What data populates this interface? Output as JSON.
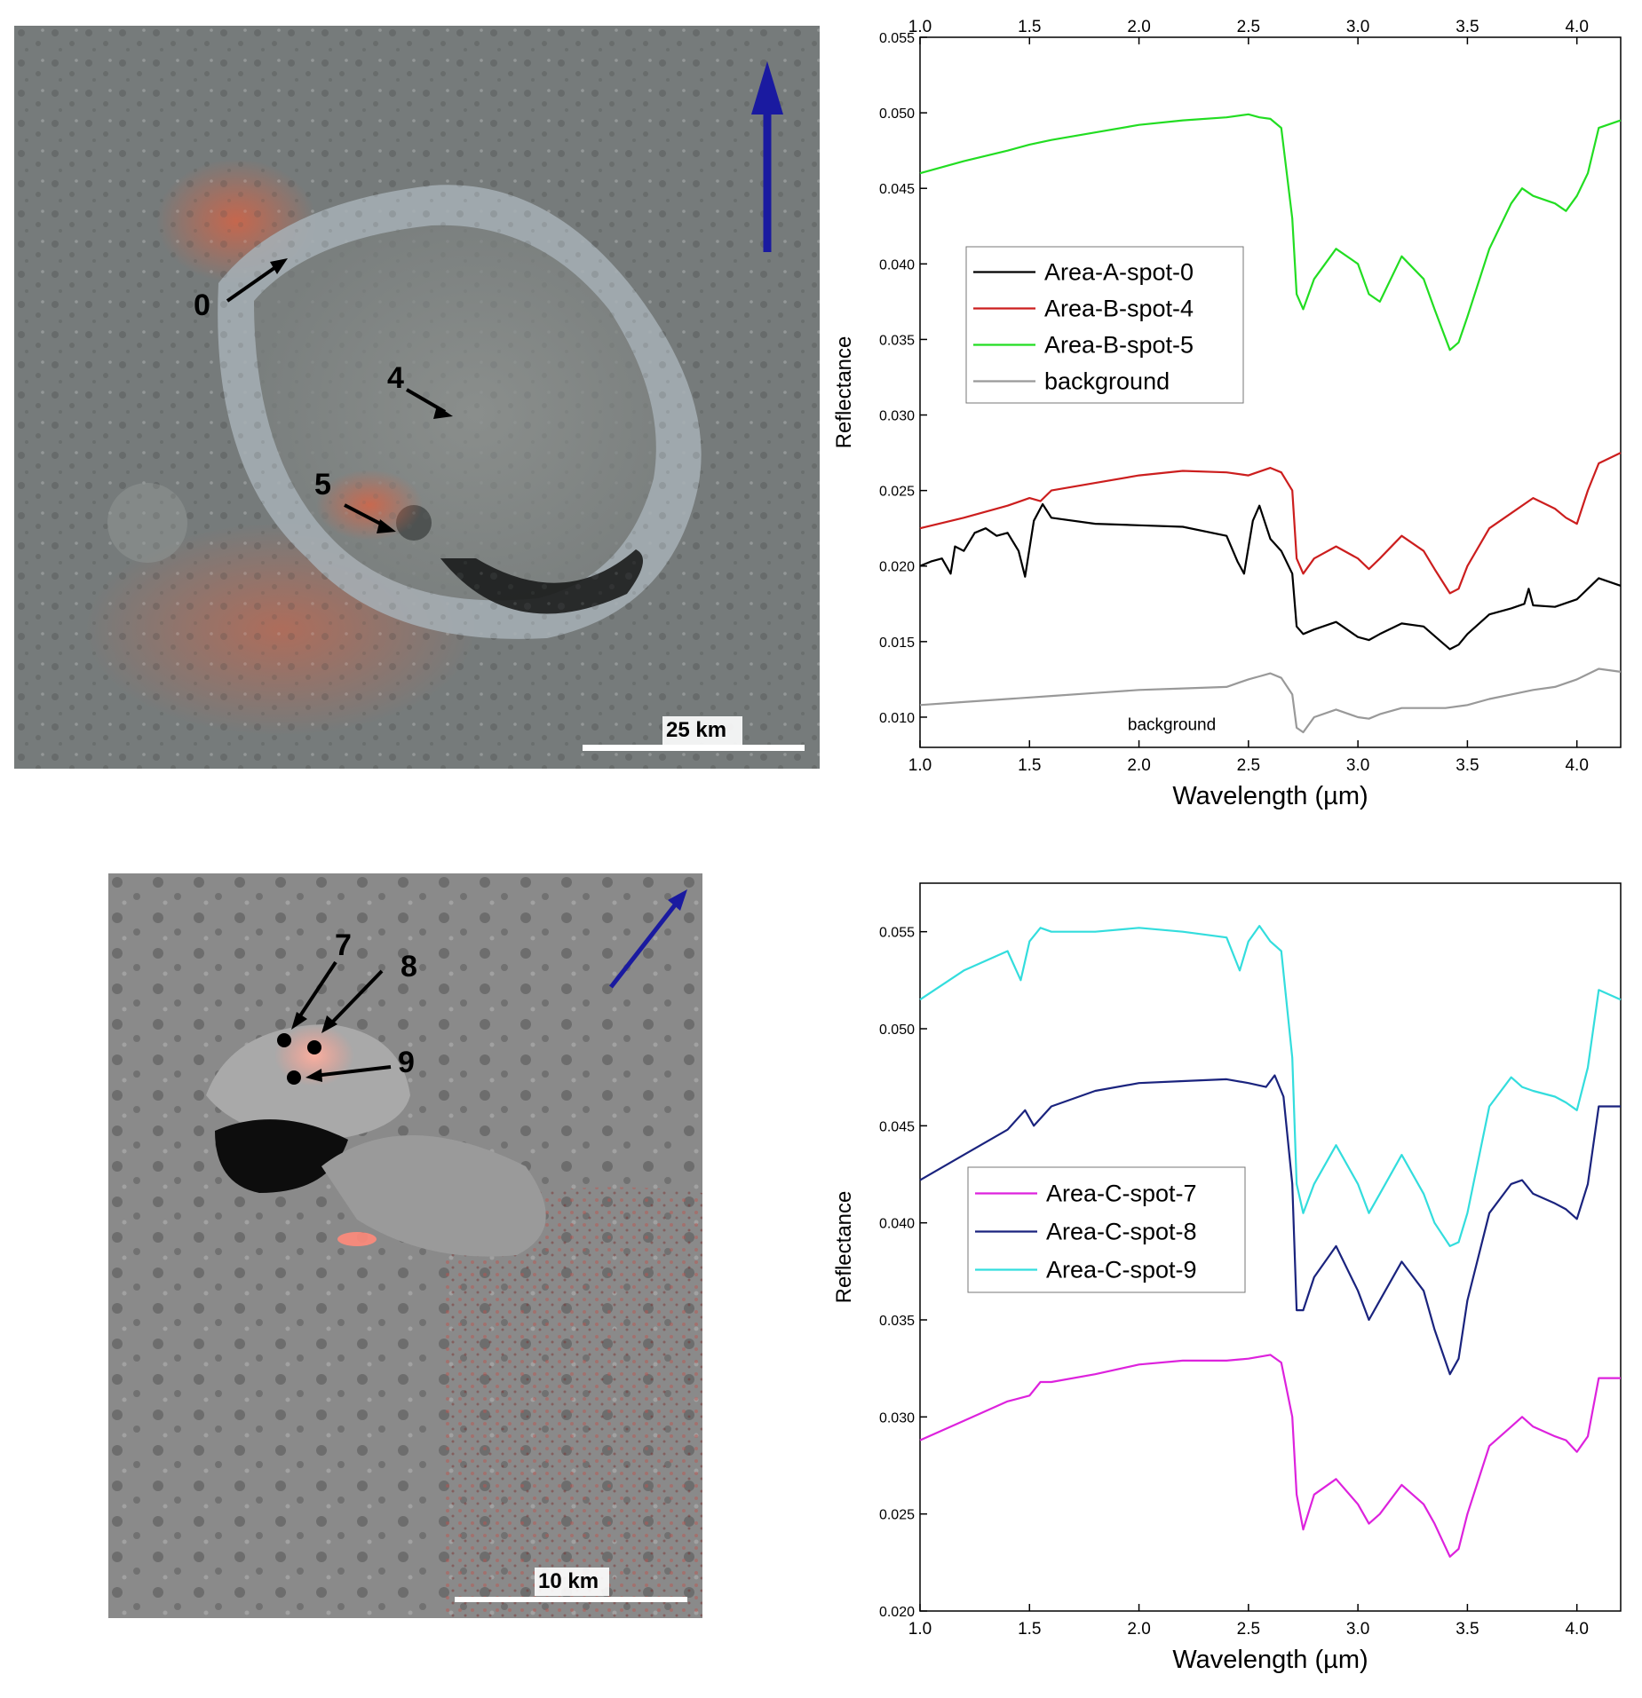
{
  "image_a": {
    "scale_label": "25 km",
    "spot_labels": [
      "0",
      "4",
      "5"
    ]
  },
  "image_b": {
    "scale_label": "10 km",
    "spot_labels": [
      "7",
      "8",
      "9"
    ]
  },
  "colors": {
    "area_a_spot_0": "#000000",
    "area_b_spot_4": "#cc1e1e",
    "area_b_spot_5": "#22dd22",
    "background": "#999999",
    "area_c_spot_7": "#dd22dd",
    "area_c_spot_8": "#1a237e",
    "area_c_spot_9": "#33dddd",
    "north_arrow": "#1a1aa0"
  },
  "chart_data": [
    {
      "type": "line",
      "xlabel": "Wavelength (µm)",
      "ylabel": "Reflectance",
      "xlim": [
        1.0,
        4.2
      ],
      "ylim": [
        0.008,
        0.055
      ],
      "xticks": [
        "1.0",
        "1.5",
        "2.0",
        "2.5",
        "3.0",
        "3.5",
        "4.0"
      ],
      "xticks_top": [
        "1.0",
        "1.5",
        "2.0",
        "2.5",
        "3.0",
        "3.5",
        "4.0"
      ],
      "yticks": [
        "0.010",
        "0.015",
        "0.020",
        "0.025",
        "0.030",
        "0.035",
        "0.040",
        "0.045",
        "0.050",
        "0.055"
      ],
      "legend_position": "middle-left",
      "annotation": "background",
      "series": [
        {
          "name": "Area-A-spot-0",
          "x": [
            1.0,
            1.05,
            1.1,
            1.14,
            1.16,
            1.2,
            1.25,
            1.3,
            1.35,
            1.4,
            1.45,
            1.48,
            1.52,
            1.56,
            1.6,
            1.8,
            2.0,
            2.2,
            2.4,
            2.45,
            2.48,
            2.52,
            2.55,
            2.6,
            2.65,
            2.7,
            2.72,
            2.75,
            2.8,
            2.9,
            3.0,
            3.05,
            3.1,
            3.2,
            3.3,
            3.38,
            3.42,
            3.46,
            3.5,
            3.6,
            3.7,
            3.76,
            3.78,
            3.8,
            3.9,
            4.0,
            4.05,
            4.1,
            4.2
          ],
          "y": [
            0.02,
            0.0203,
            0.0205,
            0.0195,
            0.0213,
            0.021,
            0.0222,
            0.0225,
            0.022,
            0.0222,
            0.021,
            0.0193,
            0.023,
            0.0241,
            0.0232,
            0.0228,
            0.0227,
            0.0226,
            0.022,
            0.0203,
            0.0195,
            0.023,
            0.024,
            0.0218,
            0.021,
            0.0195,
            0.016,
            0.0155,
            0.0158,
            0.0163,
            0.0153,
            0.0151,
            0.0155,
            0.0162,
            0.016,
            0.015,
            0.0145,
            0.0148,
            0.0155,
            0.0168,
            0.0172,
            0.0175,
            0.0185,
            0.0174,
            0.0173,
            0.0178,
            0.0185,
            0.0192,
            0.0187
          ]
        },
        {
          "name": "Area-B-spot-4",
          "x": [
            1.0,
            1.2,
            1.4,
            1.5,
            1.55,
            1.6,
            1.8,
            2.0,
            2.2,
            2.4,
            2.5,
            2.6,
            2.65,
            2.7,
            2.72,
            2.75,
            2.8,
            2.9,
            3.0,
            3.05,
            3.1,
            3.2,
            3.3,
            3.35,
            3.42,
            3.46,
            3.5,
            3.6,
            3.7,
            3.8,
            3.9,
            3.95,
            4.0,
            4.05,
            4.1,
            4.2
          ],
          "y": [
            0.0225,
            0.0232,
            0.024,
            0.0245,
            0.0243,
            0.025,
            0.0255,
            0.026,
            0.0263,
            0.0262,
            0.026,
            0.0265,
            0.0262,
            0.025,
            0.0205,
            0.0195,
            0.0205,
            0.0213,
            0.0205,
            0.0198,
            0.0205,
            0.022,
            0.021,
            0.0198,
            0.0182,
            0.0185,
            0.02,
            0.0225,
            0.0235,
            0.0245,
            0.0238,
            0.0232,
            0.0228,
            0.025,
            0.0268,
            0.0275
          ]
        },
        {
          "name": "Area-B-spot-5",
          "x": [
            1.0,
            1.2,
            1.4,
            1.5,
            1.6,
            1.8,
            2.0,
            2.2,
            2.4,
            2.5,
            2.55,
            2.6,
            2.65,
            2.7,
            2.72,
            2.75,
            2.8,
            2.9,
            3.0,
            3.05,
            3.1,
            3.2,
            3.3,
            3.35,
            3.42,
            3.46,
            3.5,
            3.6,
            3.7,
            3.75,
            3.8,
            3.9,
            3.95,
            4.0,
            4.05,
            4.1,
            4.2
          ],
          "y": [
            0.046,
            0.0468,
            0.0475,
            0.0479,
            0.0482,
            0.0487,
            0.0492,
            0.0495,
            0.0497,
            0.0499,
            0.0497,
            0.0496,
            0.049,
            0.043,
            0.038,
            0.037,
            0.039,
            0.041,
            0.04,
            0.038,
            0.0375,
            0.0405,
            0.039,
            0.037,
            0.0343,
            0.0348,
            0.0365,
            0.041,
            0.044,
            0.045,
            0.0445,
            0.044,
            0.0435,
            0.0445,
            0.046,
            0.049,
            0.0495
          ]
        },
        {
          "name": "background",
          "x": [
            1.0,
            1.2,
            1.4,
            1.5,
            1.6,
            1.8,
            2.0,
            2.2,
            2.4,
            2.5,
            2.55,
            2.6,
            2.65,
            2.7,
            2.72,
            2.75,
            2.8,
            2.9,
            3.0,
            3.05,
            3.1,
            3.2,
            3.3,
            3.4,
            3.5,
            3.6,
            3.7,
            3.8,
            3.9,
            4.0,
            4.1,
            4.2
          ],
          "y": [
            0.0108,
            0.011,
            0.0112,
            0.0113,
            0.0114,
            0.0116,
            0.0118,
            0.0119,
            0.012,
            0.0125,
            0.0127,
            0.0129,
            0.0126,
            0.0115,
            0.0093,
            0.009,
            0.01,
            0.0105,
            0.01,
            0.0099,
            0.0102,
            0.0106,
            0.0106,
            0.0106,
            0.0108,
            0.0112,
            0.0115,
            0.0118,
            0.012,
            0.0125,
            0.0132,
            0.013
          ]
        }
      ]
    },
    {
      "type": "line",
      "xlabel": "Wavelength (µm)",
      "ylabel": "Reflectance",
      "xlim": [
        1.0,
        4.2
      ],
      "ylim": [
        0.02,
        0.0575
      ],
      "xticks": [
        "1.0",
        "1.5",
        "2.0",
        "2.5",
        "3.0",
        "3.5",
        "4.0"
      ],
      "yticks": [
        "0.020",
        "0.025",
        "0.030",
        "0.035",
        "0.040",
        "0.045",
        "0.050",
        "0.055"
      ],
      "legend_position": "middle-left",
      "series": [
        {
          "name": "Area-C-spot-7",
          "x": [
            1.0,
            1.2,
            1.4,
            1.5,
            1.55,
            1.6,
            1.8,
            2.0,
            2.2,
            2.4,
            2.5,
            2.6,
            2.65,
            2.7,
            2.72,
            2.75,
            2.8,
            2.9,
            3.0,
            3.05,
            3.1,
            3.2,
            3.3,
            3.35,
            3.42,
            3.46,
            3.5,
            3.6,
            3.7,
            3.75,
            3.8,
            3.9,
            3.95,
            4.0,
            4.05,
            4.1,
            4.2
          ],
          "y": [
            0.0288,
            0.0298,
            0.0308,
            0.0311,
            0.0318,
            0.0318,
            0.0322,
            0.0327,
            0.0329,
            0.0329,
            0.033,
            0.0332,
            0.0328,
            0.03,
            0.026,
            0.0242,
            0.026,
            0.0268,
            0.0255,
            0.0245,
            0.025,
            0.0265,
            0.0255,
            0.0245,
            0.0228,
            0.0232,
            0.025,
            0.0285,
            0.0295,
            0.03,
            0.0295,
            0.029,
            0.0288,
            0.0282,
            0.029,
            0.032,
            0.032
          ]
        },
        {
          "name": "Area-C-spot-8",
          "x": [
            1.0,
            1.2,
            1.4,
            1.48,
            1.52,
            1.6,
            1.8,
            2.0,
            2.2,
            2.4,
            2.5,
            2.58,
            2.62,
            2.66,
            2.7,
            2.72,
            2.75,
            2.8,
            2.9,
            3.0,
            3.05,
            3.1,
            3.2,
            3.3,
            3.35,
            3.42,
            3.46,
            3.5,
            3.6,
            3.7,
            3.75,
            3.8,
            3.9,
            3.95,
            4.0,
            4.05,
            4.1,
            4.2
          ],
          "y": [
            0.0422,
            0.0435,
            0.0448,
            0.0458,
            0.045,
            0.046,
            0.0468,
            0.0472,
            0.0473,
            0.0474,
            0.0472,
            0.047,
            0.0476,
            0.0465,
            0.042,
            0.0355,
            0.0355,
            0.0372,
            0.0388,
            0.0365,
            0.035,
            0.036,
            0.038,
            0.0365,
            0.0345,
            0.0322,
            0.033,
            0.036,
            0.0405,
            0.042,
            0.0422,
            0.0415,
            0.041,
            0.0407,
            0.0402,
            0.042,
            0.046,
            0.046
          ]
        },
        {
          "name": "Area-C-spot-9",
          "x": [
            1.0,
            1.2,
            1.4,
            1.46,
            1.5,
            1.55,
            1.6,
            1.8,
            2.0,
            2.2,
            2.4,
            2.46,
            2.5,
            2.55,
            2.6,
            2.65,
            2.7,
            2.72,
            2.75,
            2.8,
            2.9,
            3.0,
            3.05,
            3.1,
            3.2,
            3.3,
            3.35,
            3.42,
            3.46,
            3.5,
            3.6,
            3.7,
            3.75,
            3.8,
            3.9,
            3.95,
            4.0,
            4.05,
            4.1,
            4.2
          ],
          "y": [
            0.0515,
            0.053,
            0.054,
            0.0525,
            0.0545,
            0.0552,
            0.055,
            0.055,
            0.0552,
            0.055,
            0.0547,
            0.053,
            0.0545,
            0.0553,
            0.0545,
            0.054,
            0.0485,
            0.042,
            0.0405,
            0.042,
            0.044,
            0.042,
            0.0405,
            0.0415,
            0.0435,
            0.0415,
            0.04,
            0.0388,
            0.039,
            0.0405,
            0.046,
            0.0475,
            0.047,
            0.0468,
            0.0465,
            0.0462,
            0.0458,
            0.048,
            0.052,
            0.0515
          ]
        }
      ]
    }
  ]
}
